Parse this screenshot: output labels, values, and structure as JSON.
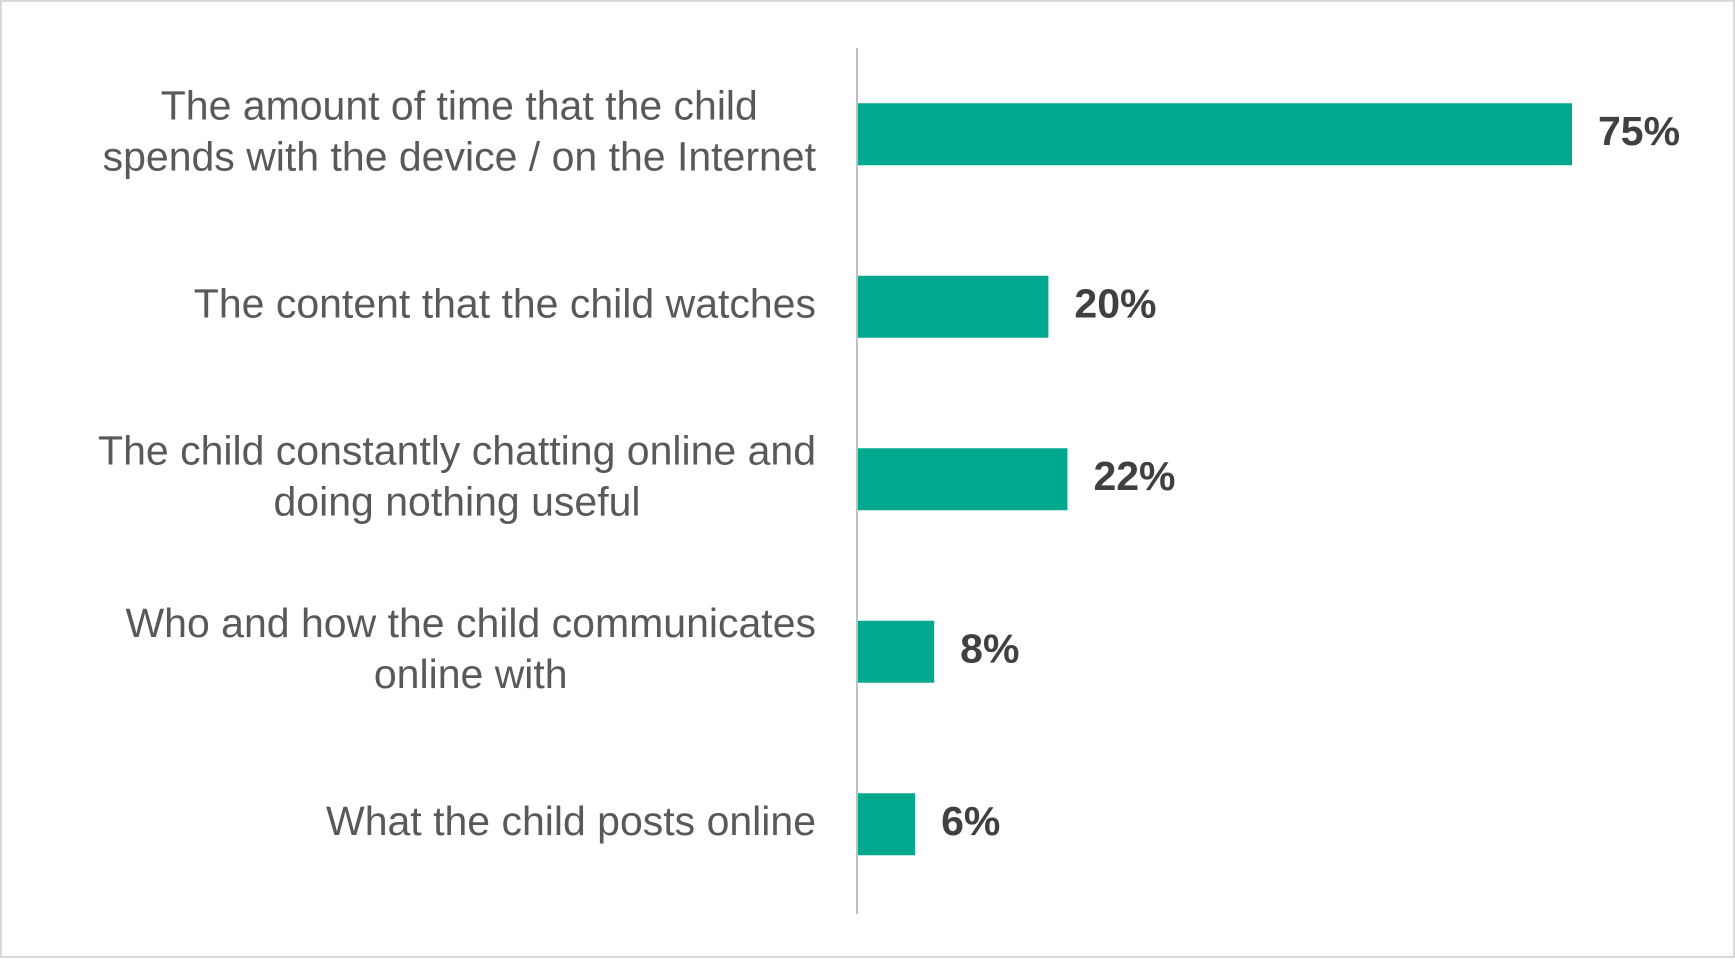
{
  "chart_data": {
    "type": "bar",
    "orientation": "horizontal",
    "categories": [
      [
        "The amount of time that the child",
        "spends with the device / on the Internet"
      ],
      [
        "The content that the child watches"
      ],
      [
        "The child constantly chatting online and",
        "doing nothing useful"
      ],
      [
        "Who and how the child communicates",
        "online with"
      ],
      [
        "What the child posts online"
      ]
    ],
    "values": [
      75,
      20,
      22,
      8,
      6
    ],
    "value_labels": [
      "75%",
      "20%",
      "22%",
      "8%",
      "6%"
    ],
    "unit": "%",
    "xlim": [
      0,
      75
    ],
    "grid": false,
    "legend": "none",
    "colors": {
      "bar": "#00a88e",
      "axis": "#bfbfbf",
      "category_text": "#595959",
      "value_text": "#404040",
      "frame": "#d9d9d9"
    }
  }
}
